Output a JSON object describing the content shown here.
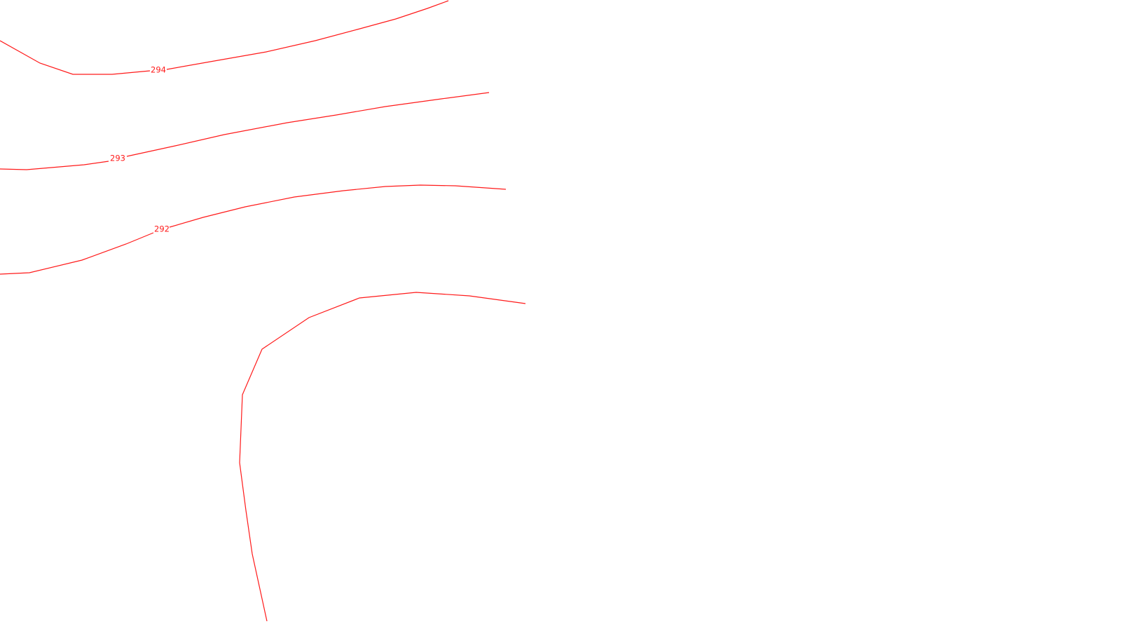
{
  "map": {
    "line_color": "#ff1a1a",
    "background_color": "#ffffff",
    "contours": [
      {
        "id": "294",
        "label": "294"
      },
      {
        "id": "293",
        "label": "293"
      },
      {
        "id": "292",
        "label": "292"
      },
      {
        "id": "291",
        "label": ""
      }
    ]
  }
}
